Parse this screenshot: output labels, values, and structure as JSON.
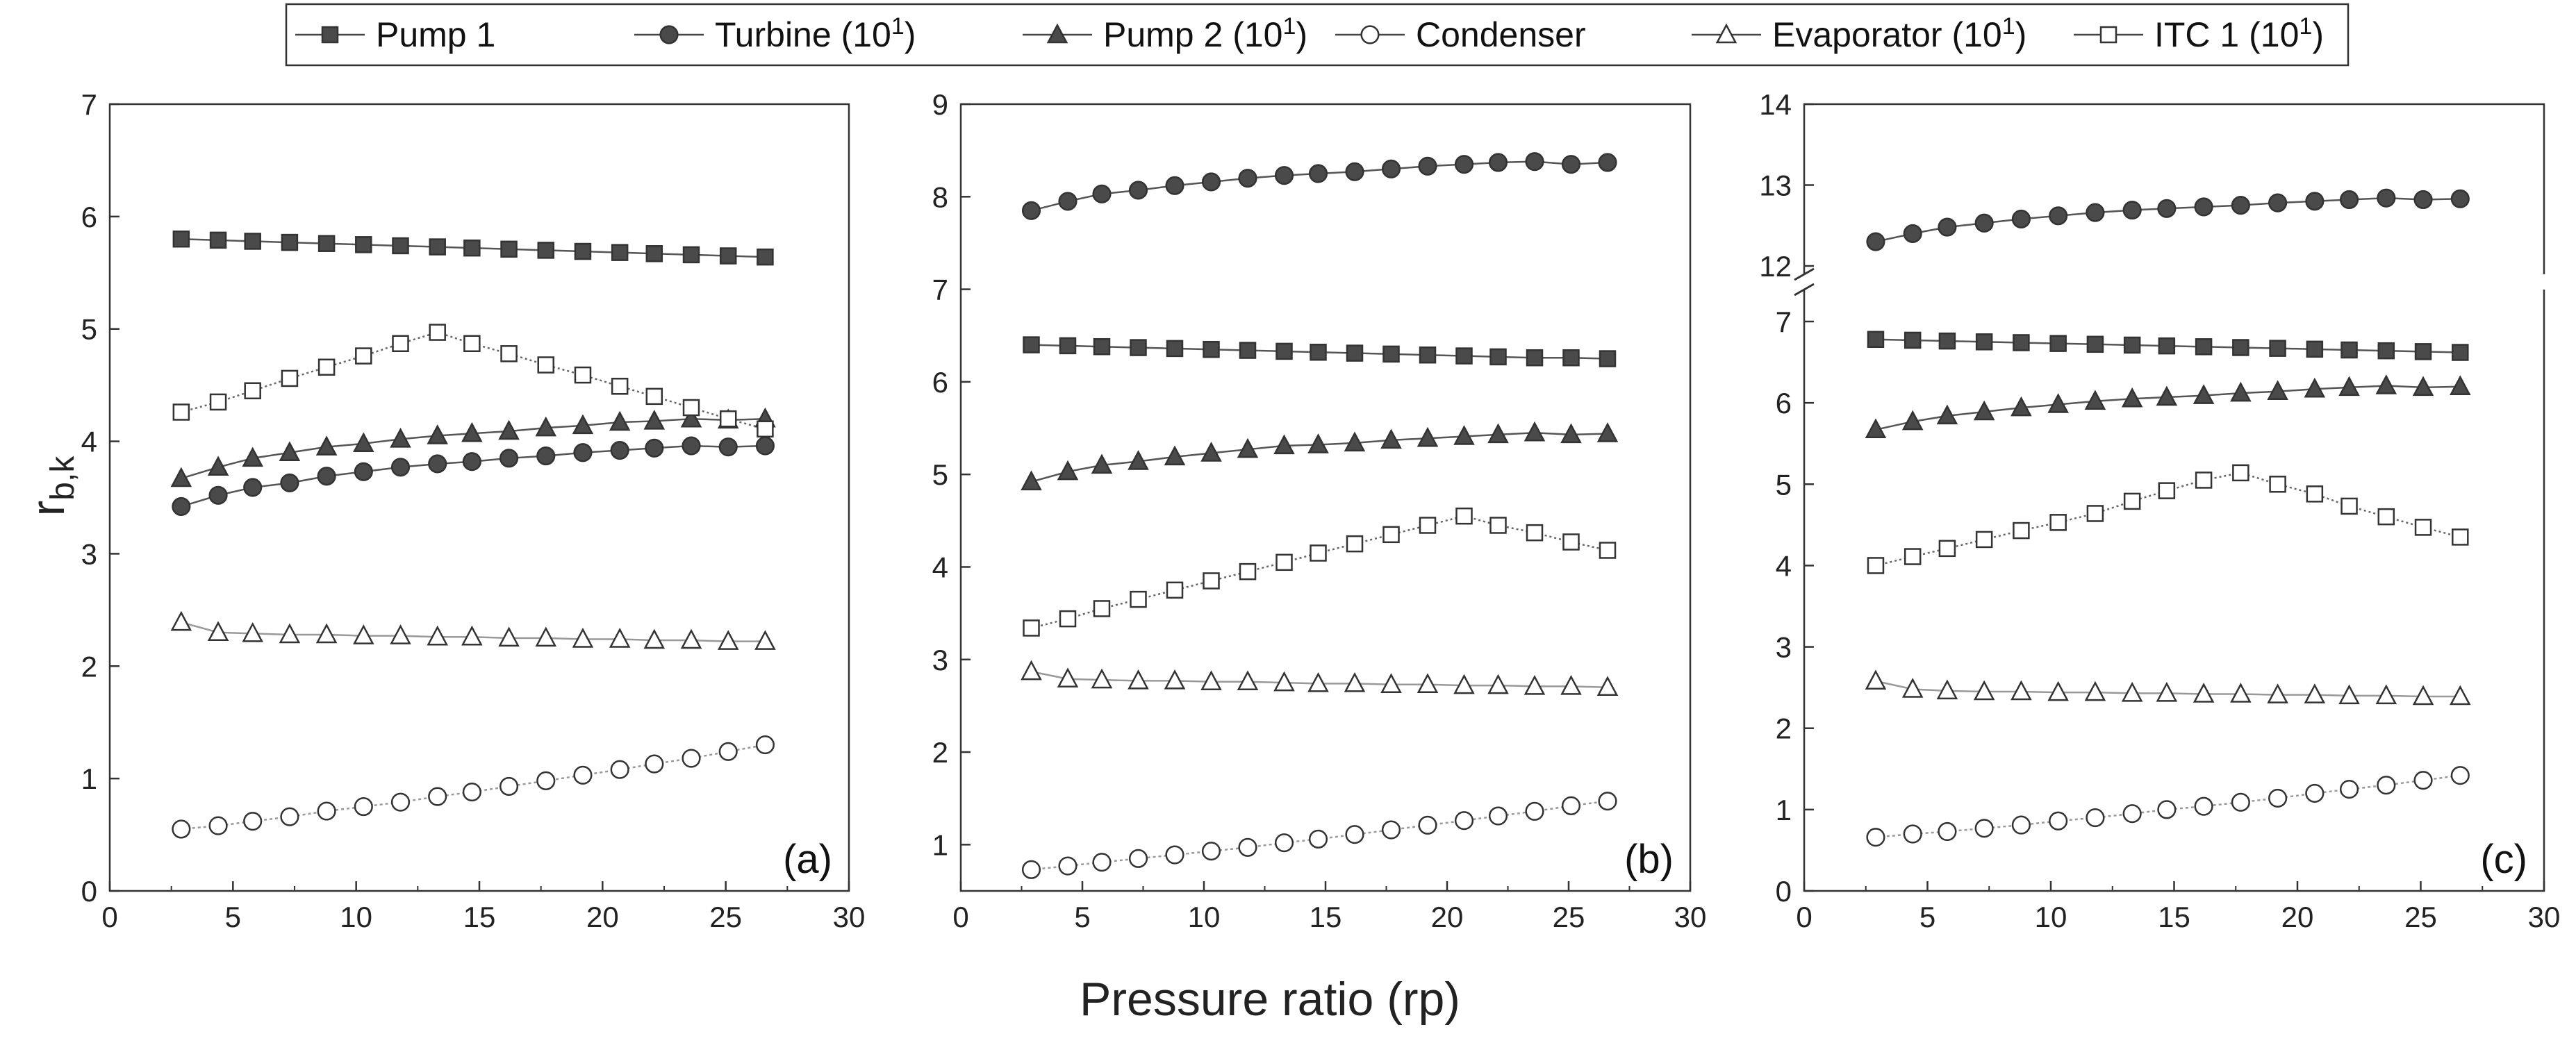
{
  "legend": {
    "entries": [
      {
        "key": "pump1",
        "label": "Pump 1",
        "exp": ""
      },
      {
        "key": "turbine",
        "label": "Turbine (10",
        "exp": "1"
      },
      {
        "key": "pump2",
        "label": "Pump 2 (10",
        "exp": "1"
      },
      {
        "key": "condenser",
        "label": "Condenser",
        "exp": ""
      },
      {
        "key": "evaporator",
        "label": "Evaporator (10",
        "exp": "1"
      },
      {
        "key": "itc1",
        "label": "ITC 1 (10",
        "exp": "1"
      }
    ]
  },
  "xlabel": "Pressure ratio (rp)",
  "ylabel": {
    "main": "r",
    "sub": "b,k"
  },
  "chart_data": [
    {
      "type": "line",
      "panel": "(a)",
      "xlim": [
        0,
        30
      ],
      "ylim": [
        0,
        7
      ],
      "xticks": [
        0,
        5,
        10,
        15,
        20,
        25,
        30
      ],
      "yticks": [
        0,
        1,
        2,
        3,
        4,
        5,
        6,
        7
      ],
      "x": [
        2.9,
        4.4,
        5.8,
        7.3,
        8.8,
        10.3,
        11.8,
        13.3,
        14.7,
        16.2,
        17.7,
        19.2,
        20.7,
        22.1,
        23.6,
        25.1,
        26.6
      ],
      "series": [
        {
          "key": "pump1",
          "name": "Pump 1",
          "values": [
            5.8,
            5.79,
            5.78,
            5.77,
            5.76,
            5.75,
            5.74,
            5.73,
            5.72,
            5.71,
            5.7,
            5.69,
            5.68,
            5.67,
            5.66,
            5.65,
            5.64
          ]
        },
        {
          "key": "turbine",
          "name": "Turbine (10^1)",
          "values": [
            3.42,
            3.52,
            3.59,
            3.63,
            3.69,
            3.73,
            3.77,
            3.8,
            3.82,
            3.85,
            3.87,
            3.9,
            3.92,
            3.94,
            3.96,
            3.95,
            3.96
          ]
        },
        {
          "key": "pump2",
          "name": "Pump 2 (10^1)",
          "values": [
            3.67,
            3.77,
            3.85,
            3.9,
            3.95,
            3.98,
            4.02,
            4.05,
            4.07,
            4.09,
            4.12,
            4.14,
            4.17,
            4.18,
            4.2,
            4.19,
            4.2
          ]
        },
        {
          "key": "condenser",
          "name": "Condenser",
          "values": [
            0.55,
            0.58,
            0.62,
            0.66,
            0.71,
            0.75,
            0.79,
            0.84,
            0.88,
            0.93,
            0.98,
            1.03,
            1.08,
            1.13,
            1.18,
            1.24,
            1.3
          ]
        },
        {
          "key": "evaporator",
          "name": "Evaporator (10^1)",
          "values": [
            2.39,
            2.3,
            2.29,
            2.28,
            2.28,
            2.27,
            2.27,
            2.26,
            2.26,
            2.25,
            2.25,
            2.24,
            2.24,
            2.23,
            2.23,
            2.22,
            2.22
          ]
        },
        {
          "key": "itc1",
          "name": "ITC 1 (10^1)",
          "values": [
            4.26,
            4.35,
            4.45,
            4.56,
            4.66,
            4.76,
            4.87,
            4.97,
            4.87,
            4.78,
            4.68,
            4.59,
            4.49,
            4.4,
            4.3,
            4.2,
            4.11
          ]
        }
      ]
    },
    {
      "type": "line",
      "panel": "(b)",
      "xlim": [
        0,
        30
      ],
      "ylim": [
        0.5,
        9
      ],
      "xticks": [
        0,
        5,
        10,
        15,
        20,
        25,
        30
      ],
      "yticks": [
        1,
        2,
        3,
        4,
        5,
        6,
        7,
        8,
        9
      ],
      "x": [
        2.9,
        4.4,
        5.8,
        7.3,
        8.8,
        10.3,
        11.8,
        13.3,
        14.7,
        16.2,
        17.7,
        19.2,
        20.7,
        22.1,
        23.6,
        25.1,
        26.6
      ],
      "series": [
        {
          "key": "pump1",
          "name": "Pump 1",
          "values": [
            6.4,
            6.39,
            6.38,
            6.37,
            6.36,
            6.35,
            6.34,
            6.33,
            6.32,
            6.31,
            6.3,
            6.29,
            6.28,
            6.27,
            6.26,
            6.26,
            6.25
          ]
        },
        {
          "key": "turbine",
          "name": "Turbine (10^1)",
          "values": [
            7.85,
            7.95,
            8.03,
            8.07,
            8.12,
            8.16,
            8.2,
            8.23,
            8.25,
            8.27,
            8.3,
            8.33,
            8.35,
            8.37,
            8.38,
            8.35,
            8.37
          ]
        },
        {
          "key": "pump2",
          "name": "Pump 2 (10^1)",
          "values": [
            4.92,
            5.03,
            5.1,
            5.14,
            5.19,
            5.23,
            5.27,
            5.31,
            5.32,
            5.34,
            5.37,
            5.39,
            5.41,
            5.43,
            5.45,
            5.43,
            5.44
          ]
        },
        {
          "key": "condenser",
          "name": "Condenser",
          "values": [
            0.73,
            0.77,
            0.81,
            0.85,
            0.89,
            0.93,
            0.97,
            1.02,
            1.06,
            1.11,
            1.16,
            1.21,
            1.26,
            1.31,
            1.36,
            1.42,
            1.47
          ]
        },
        {
          "key": "evaporator",
          "name": "Evaporator (10^1)",
          "values": [
            2.87,
            2.79,
            2.78,
            2.77,
            2.77,
            2.76,
            2.76,
            2.75,
            2.74,
            2.74,
            2.73,
            2.73,
            2.72,
            2.72,
            2.71,
            2.71,
            2.7
          ]
        },
        {
          "key": "itc1",
          "name": "ITC 1 (10^1)",
          "values": [
            3.34,
            3.44,
            3.55,
            3.65,
            3.75,
            3.85,
            3.95,
            4.05,
            4.15,
            4.25,
            4.35,
            4.45,
            4.55,
            4.45,
            4.37,
            4.27,
            4.18
          ]
        }
      ]
    },
    {
      "type": "line",
      "panel": "(c)",
      "xlim": [
        0,
        30
      ],
      "ylim": [
        0,
        14
      ],
      "axis_break": {
        "lower": [
          0,
          7.5
        ],
        "upper": [
          11.8,
          14
        ]
      },
      "xticks": [
        0,
        5,
        10,
        15,
        20,
        25,
        30
      ],
      "yticks": [
        0,
        1,
        2,
        3,
        4,
        5,
        6,
        7,
        12,
        13,
        14
      ],
      "x": [
        2.9,
        4.4,
        5.8,
        7.3,
        8.8,
        10.3,
        11.8,
        13.3,
        14.7,
        16.2,
        17.7,
        19.2,
        20.7,
        22.1,
        23.6,
        25.1,
        26.6
      ],
      "series": [
        {
          "key": "pump1",
          "name": "Pump 1",
          "values": [
            6.78,
            6.77,
            6.76,
            6.75,
            6.74,
            6.73,
            6.72,
            6.71,
            6.7,
            6.69,
            6.68,
            6.67,
            6.66,
            6.65,
            6.64,
            6.63,
            6.62
          ]
        },
        {
          "key": "turbine",
          "name": "Turbine (10^1)",
          "values": [
            12.3,
            12.4,
            12.48,
            12.53,
            12.58,
            12.62,
            12.66,
            12.69,
            12.71,
            12.73,
            12.75,
            12.78,
            12.8,
            12.82,
            12.84,
            12.82,
            12.83
          ]
        },
        {
          "key": "pump2",
          "name": "Pump 2 (10^1)",
          "values": [
            5.67,
            5.77,
            5.84,
            5.89,
            5.94,
            5.98,
            6.02,
            6.05,
            6.07,
            6.09,
            6.12,
            6.14,
            6.17,
            6.19,
            6.21,
            6.19,
            6.2
          ]
        },
        {
          "key": "condenser",
          "name": "Condenser",
          "values": [
            0.66,
            0.7,
            0.73,
            0.77,
            0.81,
            0.86,
            0.9,
            0.95,
            1.0,
            1.04,
            1.09,
            1.14,
            1.2,
            1.25,
            1.3,
            1.36,
            1.42
          ]
        },
        {
          "key": "evaporator",
          "name": "Evaporator (10^1)",
          "values": [
            2.58,
            2.48,
            2.46,
            2.45,
            2.45,
            2.44,
            2.44,
            2.43,
            2.43,
            2.42,
            2.42,
            2.41,
            2.41,
            2.4,
            2.4,
            2.39,
            2.39
          ]
        },
        {
          "key": "itc1",
          "name": "ITC 1 (10^1)",
          "values": [
            4.0,
            4.11,
            4.21,
            4.32,
            4.43,
            4.53,
            4.64,
            4.79,
            4.92,
            5.05,
            5.14,
            5.0,
            4.88,
            4.73,
            4.6,
            4.47,
            4.35
          ]
        }
      ]
    }
  ]
}
